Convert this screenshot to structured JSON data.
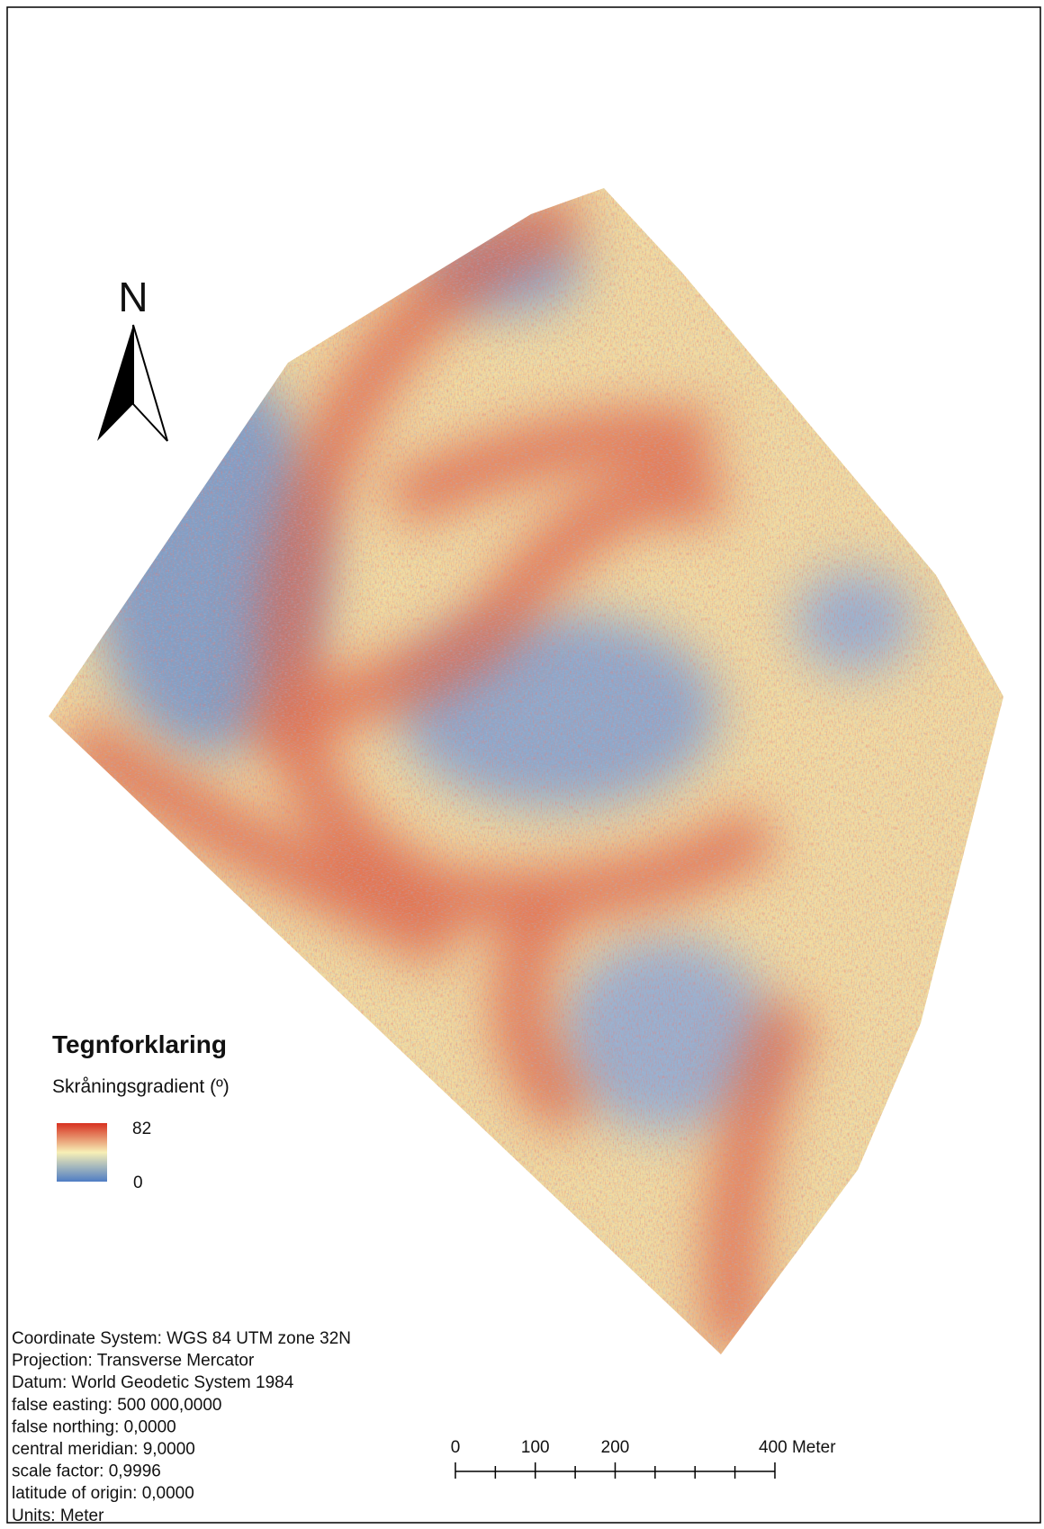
{
  "north_arrow": {
    "label": "N"
  },
  "legend": {
    "title": "Tegnforklaring",
    "subtitle": "Skråningsgradient (º)",
    "max_label": "82",
    "min_label": "0"
  },
  "coordinate_info": [
    "Coordinate System: WGS 84 UTM zone 32N",
    "Projection: Transverse Mercator",
    "Datum: World Geodetic System 1984",
    "false easting: 500 000,0000",
    "false northing: 0,0000",
    "central meridian: 9,0000",
    "scale factor: 0,9996",
    "latitude of origin: 0,0000",
    "Units: Meter"
  ],
  "scale_bar": {
    "labels": [
      "0",
      "100",
      "200",
      "400 Meter"
    ]
  }
}
